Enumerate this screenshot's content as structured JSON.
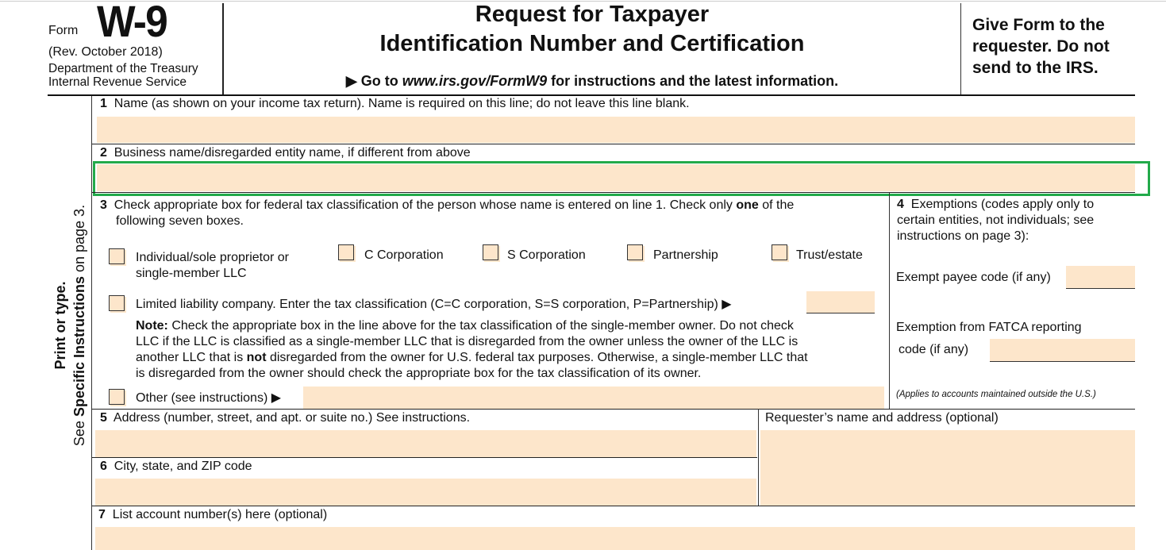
{
  "header": {
    "form_word": "Form",
    "form_number": "W-9",
    "revision": "(Rev. October 2018)",
    "department": "Department of the Treasury",
    "agency": "Internal Revenue Service",
    "title_line1": "Request for Taxpayer",
    "title_line2": "Identification Number and Certification",
    "goto_prefix": "▶ Go to ",
    "goto_url": "www.irs.gov/FormW9",
    "goto_suffix": " for instructions and the latest information.",
    "give_form_line1": "Give Form to the",
    "give_form_line2": "requester. Do not",
    "give_form_line3": "send to the IRS."
  },
  "side": {
    "print_or_type": "Print or type.",
    "see": "See ",
    "specific": "Specific Instructions",
    "on_page": " on page 3."
  },
  "line1": {
    "num": "1",
    "label": "Name (as shown on your income tax return). Name is required on this line; do not leave this line blank.",
    "value": ""
  },
  "line2": {
    "num": "2",
    "label": "Business name/disregarded entity name, if different from above",
    "value": ""
  },
  "line3": {
    "num": "3",
    "label_a": "Check appropriate box for federal tax classification of the person whose name is entered on line 1. Check only ",
    "label_bold": "one",
    "label_b": " of the",
    "label_line2": "following seven boxes.",
    "options": [
      {
        "label1": "Individual/sole proprietor or",
        "label2": "single-member LLC",
        "checked": false
      },
      {
        "label1": "C Corporation",
        "checked": false
      },
      {
        "label1": "S Corporation",
        "checked": false
      },
      {
        "label1": "Partnership",
        "checked": false
      },
      {
        "label1": "Trust/estate",
        "checked": false
      }
    ],
    "llc_label": "Limited liability company. Enter the tax classification (C=C corporation, S=S corporation, P=Partnership) ▶",
    "llc_value": "",
    "note_bold": "Note:",
    "note_1": " Check the appropriate box in the line above for the tax classification of the single-member owner.  Do not check",
    "note_2": "LLC if the LLC is classified as a single-member LLC that is disregarded from the owner unless the owner of the LLC is",
    "note_3a": "another LLC that is ",
    "note_3bold": "not",
    "note_3b": " disregarded from the owner for U.S. federal tax purposes. Otherwise, a single-member LLC that",
    "note_4": "is disregarded from the owner should check the appropriate box for the tax classification of its owner.",
    "other_label": "Other (see instructions) ▶",
    "other_value": ""
  },
  "line4": {
    "num": "4",
    "label1": "Exemptions (codes apply only to",
    "label2": "certain entities, not individuals; see",
    "label3": "instructions on page 3):",
    "exempt_payee_label": "Exempt payee code (if any)",
    "exempt_payee_value": "",
    "fatca_label1": "Exemption from FATCA reporting",
    "fatca_label2": "code (if any)",
    "fatca_value": "",
    "fatca_note": "(Applies to accounts maintained outside the U.S.)"
  },
  "line5": {
    "num": "5",
    "label": "Address (number, street, and apt. or suite no.) See instructions.",
    "value": ""
  },
  "requester": {
    "label": "Requester’s name and address (optional)",
    "value": ""
  },
  "line6": {
    "num": "6",
    "label": "City, state, and ZIP code",
    "value": ""
  },
  "line7": {
    "num": "7",
    "label": "List account number(s) here (optional)",
    "value": ""
  },
  "colors": {
    "field_fill": "#fde6cb",
    "highlight": "#22aa4a"
  }
}
